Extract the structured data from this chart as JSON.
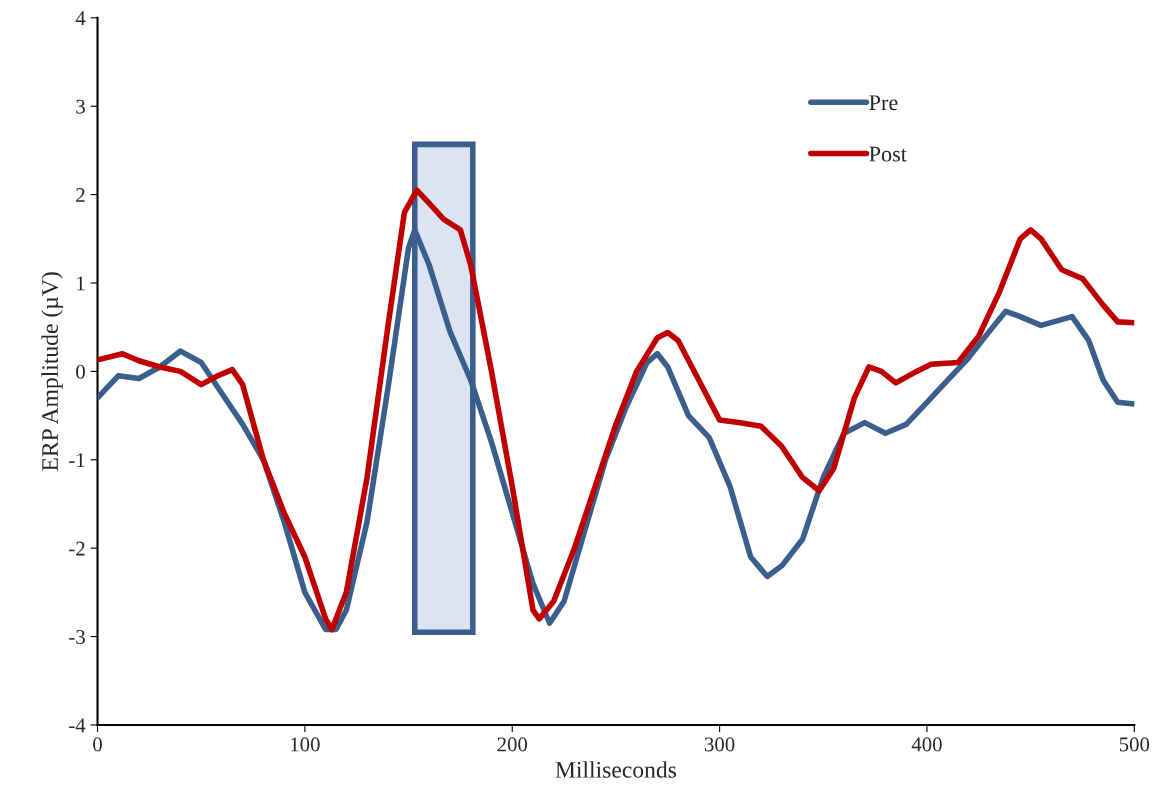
{
  "chart_data": {
    "type": "line",
    "xlabel": "Milliseconds",
    "ylabel": "ERP Amplitude (µV)",
    "xlim": [
      0,
      500
    ],
    "xticks": [
      0,
      100,
      200,
      300,
      400,
      500
    ],
    "ylim": [
      -4,
      4
    ],
    "yticks": [
      -4,
      -3,
      -2,
      -1,
      0,
      1,
      2,
      3,
      4
    ],
    "grid": false,
    "legend": "top right",
    "marker": "none",
    "line_style": "solid",
    "bands": [
      {
        "axis": "x",
        "from": 153,
        "to": 181,
        "color": "#dbe4f0"
      }
    ],
    "series": [
      {
        "name": "Pre",
        "color": "#3b5f8c",
        "x": [
          0,
          10,
          20,
          30,
          40,
          50,
          60,
          70,
          80,
          90,
          100,
          110,
          115,
          120,
          130,
          140,
          150,
          153,
          160,
          170,
          180,
          190,
          200,
          210,
          218,
          225,
          235,
          245,
          255,
          265,
          270,
          275,
          285,
          295,
          305,
          315,
          323,
          330,
          340,
          350,
          360,
          370,
          380,
          390,
          400,
          410,
          420,
          430,
          438,
          445,
          455,
          470,
          478,
          485,
          492,
          500
        ],
        "values": [
          -0.3,
          -0.05,
          -0.08,
          0.05,
          0.23,
          0.1,
          -0.25,
          -0.6,
          -1.0,
          -1.7,
          -2.5,
          -2.92,
          -2.92,
          -2.7,
          -1.7,
          -0.2,
          1.4,
          1.6,
          1.2,
          0.45,
          -0.1,
          -0.8,
          -1.6,
          -2.4,
          -2.85,
          -2.6,
          -1.8,
          -1.0,
          -0.4,
          0.1,
          0.2,
          0.05,
          -0.5,
          -0.75,
          -1.3,
          -2.1,
          -2.32,
          -2.2,
          -1.9,
          -1.2,
          -0.7,
          -0.58,
          -0.7,
          -0.6,
          -0.35,
          -0.1,
          0.15,
          0.45,
          0.68,
          0.62,
          0.52,
          0.62,
          0.35,
          -0.1,
          -0.35,
          -0.37
        ]
      },
      {
        "name": "Post",
        "color": "#c00000",
        "x": [
          0,
          12,
          20,
          30,
          40,
          50,
          58,
          65,
          70,
          80,
          90,
          100,
          110,
          113,
          120,
          130,
          140,
          148,
          154,
          160,
          167,
          175,
          180,
          190,
          200,
          210,
          213,
          220,
          230,
          240,
          250,
          260,
          270,
          275,
          280,
          290,
          300,
          310,
          320,
          330,
          340,
          348,
          355,
          365,
          372,
          378,
          385,
          395,
          402,
          415,
          425,
          435,
          445,
          450,
          455,
          465,
          475,
          485,
          492,
          500
        ],
        "values": [
          0.13,
          0.2,
          0.12,
          0.05,
          0.0,
          -0.15,
          -0.05,
          0.02,
          -0.15,
          -1.0,
          -1.6,
          -2.1,
          -2.8,
          -2.92,
          -2.5,
          -1.2,
          0.5,
          1.8,
          2.05,
          1.9,
          1.72,
          1.6,
          1.2,
          0.0,
          -1.3,
          -2.7,
          -2.8,
          -2.6,
          -2.0,
          -1.3,
          -0.6,
          0.0,
          0.38,
          0.44,
          0.35,
          -0.1,
          -0.55,
          -0.58,
          -0.62,
          -0.85,
          -1.2,
          -1.35,
          -1.1,
          -0.3,
          0.05,
          0.0,
          -0.13,
          0.0,
          0.08,
          0.1,
          0.4,
          0.9,
          1.5,
          1.6,
          1.5,
          1.15,
          1.05,
          0.75,
          0.56,
          0.55
        ]
      }
    ]
  }
}
